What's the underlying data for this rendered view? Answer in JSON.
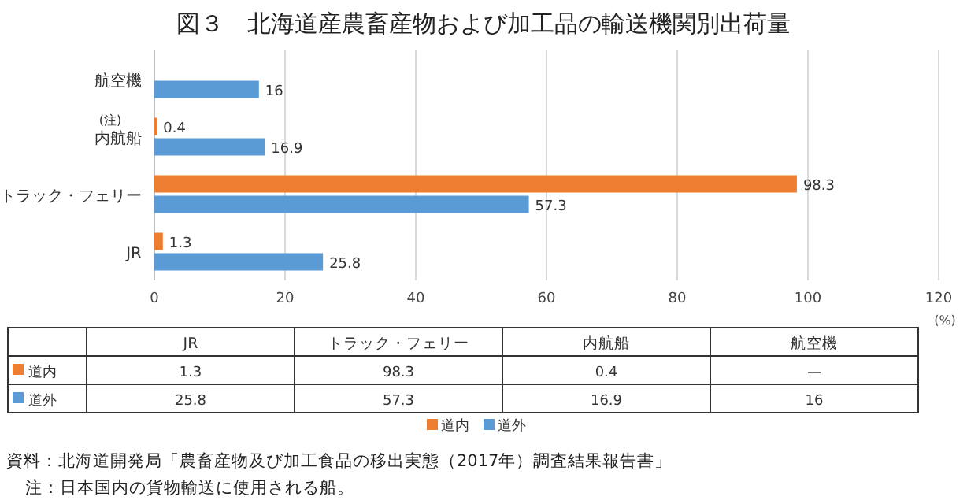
{
  "chart_data": {
    "type": "bar",
    "orientation": "horizontal",
    "title": "図３　北海道産農畜産物および加工品の輸送機関別出荷量",
    "categories": [
      "航空機",
      "内航船",
      "トラック・フェリー",
      "JR"
    ],
    "series": [
      {
        "name": "道内",
        "color": "#ed7d31",
        "values": [
          null,
          0.4,
          98.3,
          1.3
        ],
        "value_labels": [
          "—",
          "0.4",
          "98.3",
          "1.3"
        ]
      },
      {
        "name": "道外",
        "color": "#5b9bd5",
        "values": [
          16,
          16.9,
          57.3,
          25.8
        ],
        "value_labels": [
          "16",
          "16.9",
          "57.3",
          "25.8"
        ]
      }
    ],
    "xlim": [
      0,
      120
    ],
    "xticks": [
      0,
      20,
      40,
      60,
      80,
      100,
      120
    ],
    "xlabel": "(%)",
    "grid": "x",
    "legend": "bottom",
    "annotations": [
      "(注)",
      "資料：北海道開発局「農畜産物及び加工食品の移出実態（2017年）調査結果報告書」",
      "注：日本国内の貨物輸送に使用される船。"
    ]
  }
}
